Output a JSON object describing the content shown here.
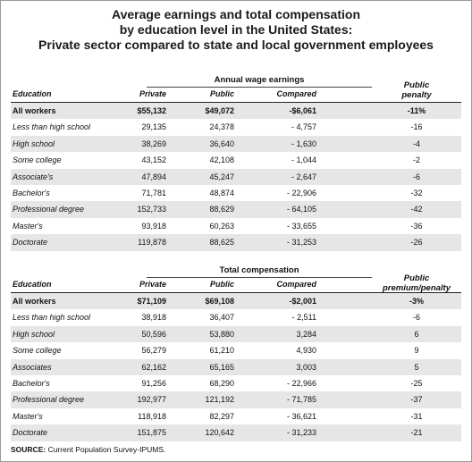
{
  "title": {
    "line1": "Average earnings and total compensation",
    "line2": "by education level in the United States:",
    "line3": "Private sector compared to state and local government employees"
  },
  "columns": {
    "education": "Education",
    "private": "Private",
    "public": "Public",
    "compared": "Compared"
  },
  "wages": {
    "group_label": "Annual wage earnings",
    "public_col_line1": "Public",
    "public_col_line2": "penalty",
    "rows": [
      {
        "education": "All workers",
        "private": "$55,132",
        "public": "$49,072",
        "compared": "-$6,061",
        "pct": "-11%"
      },
      {
        "education": "Less than high school",
        "private": "29,135",
        "public": "24,378",
        "compared": "- 4,757",
        "pct": "-16"
      },
      {
        "education": "High school",
        "private": "38,269",
        "public": "36,640",
        "compared": "- 1,630",
        "pct": "-4"
      },
      {
        "education": "Some college",
        "private": "43,152",
        "public": "42,108",
        "compared": "- 1,044",
        "pct": "-2"
      },
      {
        "education": "Associate's",
        "private": "47,894",
        "public": "45,247",
        "compared": "- 2,647",
        "pct": "-6"
      },
      {
        "education": "Bachelor's",
        "private": "71,781",
        "public": "48,874",
        "compared": "- 22,906",
        "pct": "-32"
      },
      {
        "education": "Professional degree",
        "private": "152,733",
        "public": "88,629",
        "compared": "- 64,105",
        "pct": "-42"
      },
      {
        "education": "Master's",
        "private": "93,918",
        "public": "60,263",
        "compared": "- 33,655",
        "pct": "-36"
      },
      {
        "education": "Doctorate",
        "private": "119,878",
        "public": "88,625",
        "compared": "- 31,253",
        "pct": "-26"
      }
    ]
  },
  "compensation": {
    "group_label": "Total compensation",
    "public_col_line1": "Public",
    "public_col_line2": "premium/penalty",
    "rows": [
      {
        "education": "All workers",
        "private": "$71,109",
        "public": "$69,108",
        "compared": "-$2,001",
        "pct": "-3%"
      },
      {
        "education": "Less than high school",
        "private": "38,918",
        "public": "36,407",
        "compared": "- 2,511",
        "pct": "-6"
      },
      {
        "education": "High school",
        "private": "50,596",
        "public": "53,880",
        "compared": "3,284",
        "pct": "6"
      },
      {
        "education": "Some college",
        "private": "56,279",
        "public": "61,210",
        "compared": "4,930",
        "pct": "9"
      },
      {
        "education": "Associates",
        "private": "62,162",
        "public": "65,165",
        "compared": "3,003",
        "pct": "5"
      },
      {
        "education": "Bachelor's",
        "private": "91,256",
        "public": "68,290",
        "compared": "- 22,966",
        "pct": "-25"
      },
      {
        "education": "Professional degree",
        "private": "192,977",
        "public": "121,192",
        "compared": "- 71,785",
        "pct": "-37"
      },
      {
        "education": "Master's",
        "private": "118,918",
        "public": "82,297",
        "compared": "- 36,621",
        "pct": "-31"
      },
      {
        "education": "Doctorate",
        "private": "151,875",
        "public": "120,642",
        "compared": "- 31,233",
        "pct": "-21"
      }
    ]
  },
  "source": {
    "label": "SOURCE:",
    "text": " Current Population Survey-IPUMS."
  }
}
